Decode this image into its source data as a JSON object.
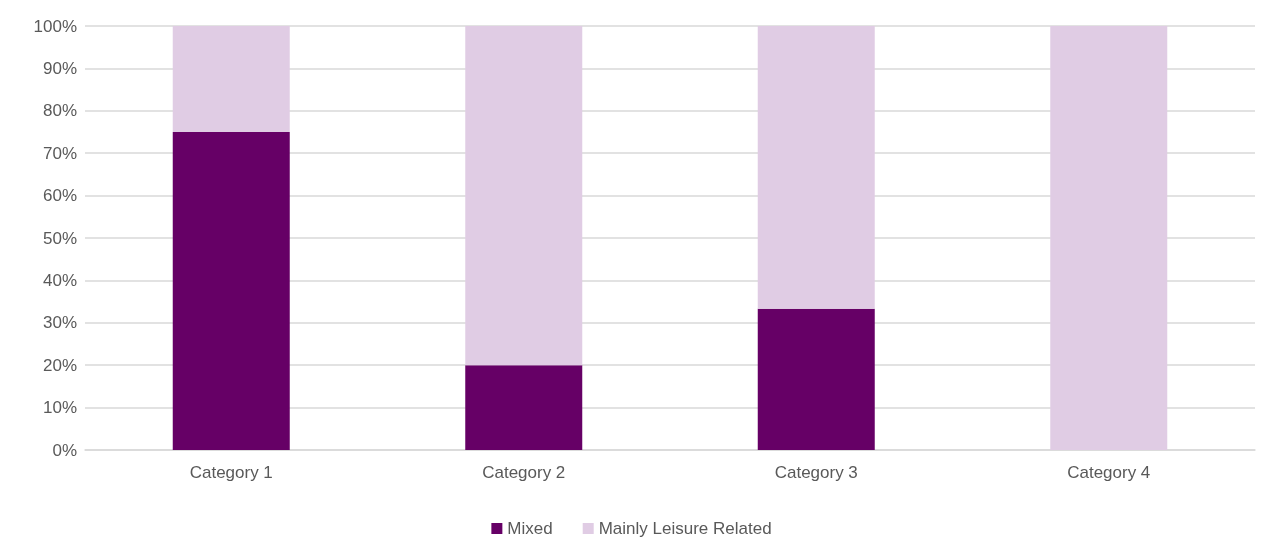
{
  "chart_data": {
    "type": "bar",
    "stacked": true,
    "categories": [
      "Category 1",
      "Category 2",
      "Category 3",
      "Category 4"
    ],
    "series": [
      {
        "name": "Mixed",
        "color": "#660066",
        "values": [
          75,
          20,
          33.3,
          0
        ]
      },
      {
        "name": "Mainly Leisure Related",
        "color": "#e0cce4",
        "values": [
          25,
          80,
          66.7,
          100
        ]
      }
    ],
    "ylim": [
      0,
      100
    ],
    "yticks": [
      {
        "value": 0,
        "label": "0%"
      },
      {
        "value": 10,
        "label": "10%"
      },
      {
        "value": 20,
        "label": "20%"
      },
      {
        "value": 30,
        "label": "30%"
      },
      {
        "value": 40,
        "label": "40%"
      },
      {
        "value": 50,
        "label": "50%"
      },
      {
        "value": 60,
        "label": "60%"
      },
      {
        "value": 70,
        "label": "70%"
      },
      {
        "value": 80,
        "label": "80%"
      },
      {
        "value": 90,
        "label": "90%"
      },
      {
        "value": 100,
        "label": "100%"
      }
    ],
    "grid": "y",
    "legend": "bottom"
  }
}
